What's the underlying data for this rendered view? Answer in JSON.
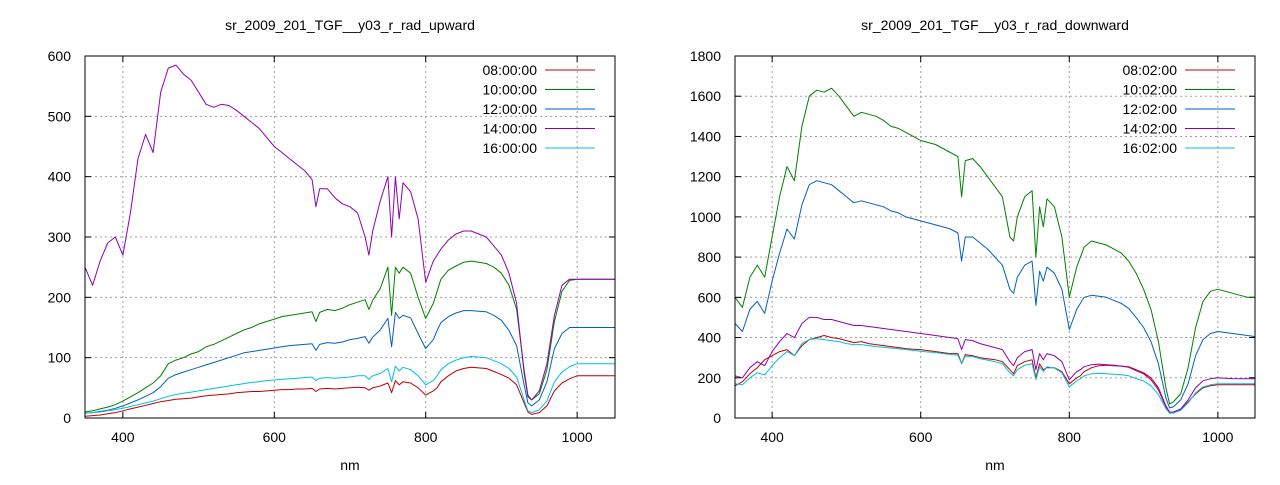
{
  "chart_data": [
    {
      "type": "line",
      "title": "sr_2009_201_TGF__y03_r_rad_upward",
      "xlabel": "nm",
      "ylabel": "",
      "xlim": [
        350,
        1050
      ],
      "ylim": [
        0,
        600
      ],
      "xticks": [
        400,
        600,
        800,
        1000
      ],
      "yticks": [
        0,
        100,
        200,
        300,
        400,
        500,
        600
      ],
      "grid": true,
      "legend": "top-right",
      "x": [
        350,
        360,
        370,
        380,
        390,
        400,
        410,
        420,
        430,
        440,
        450,
        460,
        470,
        480,
        490,
        500,
        510,
        520,
        530,
        540,
        550,
        560,
        570,
        580,
        590,
        600,
        610,
        620,
        630,
        640,
        650,
        655,
        660,
        670,
        680,
        690,
        700,
        710,
        720,
        725,
        730,
        740,
        750,
        755,
        760,
        765,
        770,
        780,
        790,
        800,
        810,
        815,
        820,
        830,
        840,
        850,
        860,
        870,
        880,
        890,
        900,
        910,
        920,
        930,
        935,
        940,
        950,
        960,
        970,
        980,
        990,
        1000,
        1010,
        1020,
        1030,
        1040,
        1050
      ],
      "series": [
        {
          "name": "08:00:00",
          "color": "#c00000",
          "values": [
            3,
            4,
            5,
            7,
            9,
            12,
            15,
            18,
            21,
            24,
            27,
            29,
            31,
            32,
            33,
            35,
            37,
            38,
            39,
            40,
            42,
            43,
            44,
            44,
            45,
            46,
            47,
            47,
            48,
            48,
            49,
            44,
            48,
            49,
            48,
            49,
            50,
            51,
            50,
            46,
            50,
            53,
            58,
            42,
            62,
            55,
            60,
            58,
            50,
            38,
            45,
            50,
            60,
            70,
            78,
            82,
            84,
            83,
            82,
            77,
            72,
            66,
            55,
            25,
            10,
            6,
            9,
            20,
            45,
            58,
            65,
            70,
            70,
            70,
            70,
            70,
            70
          ]
        },
        {
          "name": "10:00:00",
          "color": "#008000",
          "values": [
            10,
            12,
            15,
            18,
            22,
            28,
            35,
            42,
            50,
            58,
            70,
            90,
            96,
            100,
            106,
            110,
            118,
            122,
            128,
            134,
            140,
            146,
            150,
            156,
            160,
            164,
            168,
            170,
            172,
            174,
            176,
            160,
            175,
            180,
            178,
            182,
            188,
            192,
            196,
            180,
            195,
            215,
            250,
            170,
            250,
            240,
            250,
            240,
            200,
            165,
            190,
            210,
            230,
            245,
            252,
            258,
            260,
            258,
            256,
            250,
            240,
            220,
            180,
            80,
            38,
            30,
            40,
            80,
            160,
            210,
            228,
            230,
            230,
            230,
            230,
            230,
            230
          ]
        },
        {
          "name": "12:00:00",
          "color": "#0060c0",
          "values": [
            8,
            9,
            11,
            13,
            16,
            20,
            25,
            30,
            36,
            42,
            52,
            66,
            72,
            76,
            80,
            84,
            88,
            92,
            96,
            100,
            104,
            108,
            110,
            112,
            114,
            116,
            118,
            120,
            121,
            122,
            123,
            112,
            122,
            125,
            124,
            126,
            130,
            132,
            135,
            124,
            134,
            146,
            165,
            118,
            175,
            165,
            170,
            166,
            140,
            115,
            130,
            145,
            158,
            168,
            174,
            178,
            178,
            177,
            176,
            170,
            162,
            145,
            120,
            55,
            25,
            20,
            30,
            60,
            115,
            140,
            150,
            150,
            150,
            150,
            150,
            150,
            150
          ]
        },
        {
          "name": "14:00:00",
          "color": "#9000b0",
          "values": [
            250,
            220,
            260,
            290,
            300,
            270,
            340,
            430,
            470,
            440,
            540,
            580,
            585,
            570,
            560,
            540,
            520,
            515,
            520,
            518,
            510,
            500,
            490,
            480,
            465,
            450,
            440,
            430,
            420,
            410,
            395,
            350,
            380,
            380,
            365,
            355,
            350,
            340,
            300,
            270,
            310,
            360,
            400,
            300,
            400,
            330,
            390,
            375,
            330,
            225,
            260,
            270,
            280,
            295,
            305,
            310,
            310,
            305,
            300,
            285,
            270,
            240,
            190,
            75,
            35,
            30,
            45,
            90,
            170,
            220,
            230,
            230,
            230,
            230,
            230,
            230,
            230
          ]
        },
        {
          "name": "16:00:00",
          "color": "#00c0e0",
          "values": [
            8,
            9,
            10,
            12,
            14,
            16,
            19,
            22,
            25,
            28,
            32,
            36,
            39,
            41,
            43,
            45,
            47,
            49,
            51,
            53,
            55,
            57,
            59,
            60,
            62,
            63,
            64,
            65,
            66,
            67,
            68,
            62,
            66,
            67,
            66,
            67,
            68,
            70,
            70,
            64,
            70,
            74,
            82,
            60,
            86,
            78,
            84,
            80,
            70,
            55,
            62,
            70,
            80,
            90,
            96,
            100,
            102,
            101,
            100,
            95,
            90,
            82,
            68,
            30,
            12,
            9,
            14,
            28,
            60,
            76,
            85,
            90,
            90,
            90,
            90,
            90,
            90
          ]
        }
      ]
    },
    {
      "type": "line",
      "title": "sr_2009_201_TGF__y03_r_rad_downward",
      "xlabel": "nm",
      "ylabel": "",
      "xlim": [
        350,
        1050
      ],
      "ylim": [
        0,
        1800
      ],
      "xticks": [
        400,
        600,
        800,
        1000
      ],
      "yticks": [
        0,
        200,
        400,
        600,
        800,
        1000,
        1200,
        1400,
        1600,
        1800
      ],
      "grid": true,
      "legend": "top-right",
      "x": [
        350,
        360,
        370,
        380,
        390,
        400,
        410,
        420,
        430,
        440,
        450,
        460,
        470,
        480,
        490,
        500,
        510,
        520,
        530,
        540,
        550,
        560,
        570,
        580,
        590,
        600,
        610,
        620,
        630,
        640,
        650,
        655,
        660,
        670,
        680,
        690,
        700,
        710,
        720,
        725,
        730,
        740,
        750,
        755,
        760,
        765,
        770,
        780,
        790,
        800,
        810,
        815,
        820,
        830,
        840,
        850,
        860,
        870,
        880,
        890,
        900,
        910,
        920,
        930,
        935,
        940,
        950,
        960,
        970,
        980,
        990,
        1000,
        1010,
        1020,
        1030,
        1040,
        1050
      ],
      "series": [
        {
          "name": "08:02:00",
          "color": "#c00000",
          "values": [
            160,
            180,
            220,
            250,
            290,
            310,
            330,
            340,
            310,
            360,
            390,
            400,
            410,
            400,
            395,
            385,
            375,
            380,
            370,
            365,
            360,
            355,
            350,
            345,
            342,
            340,
            335,
            330,
            325,
            320,
            320,
            270,
            315,
            310,
            300,
            295,
            290,
            280,
            240,
            220,
            260,
            280,
            290,
            200,
            270,
            240,
            250,
            250,
            230,
            170,
            200,
            210,
            230,
            250,
            260,
            262,
            260,
            258,
            255,
            240,
            225,
            200,
            150,
            60,
            30,
            25,
            40,
            80,
            120,
            150,
            160,
            165,
            165,
            165,
            165,
            165,
            165
          ]
        },
        {
          "name": "10:02:00",
          "color": "#008000",
          "values": [
            600,
            550,
            700,
            760,
            700,
            900,
            1100,
            1250,
            1180,
            1450,
            1600,
            1630,
            1620,
            1640,
            1600,
            1550,
            1500,
            1520,
            1510,
            1500,
            1480,
            1450,
            1440,
            1420,
            1400,
            1380,
            1370,
            1360,
            1340,
            1320,
            1300,
            1100,
            1280,
            1290,
            1250,
            1200,
            1150,
            1100,
            900,
            880,
            1000,
            1100,
            1130,
            800,
            1050,
            950,
            1090,
            1050,
            900,
            600,
            750,
            800,
            850,
            880,
            870,
            860,
            840,
            820,
            780,
            720,
            640,
            540,
            380,
            150,
            70,
            80,
            120,
            250,
            450,
            580,
            630,
            640,
            630,
            620,
            610,
            600,
            600
          ]
        },
        {
          "name": "12:02:00",
          "color": "#0060c0",
          "values": [
            470,
            430,
            540,
            580,
            520,
            680,
            820,
            940,
            890,
            1060,
            1160,
            1180,
            1170,
            1160,
            1130,
            1100,
            1070,
            1080,
            1070,
            1060,
            1050,
            1030,
            1020,
            1000,
            990,
            980,
            970,
            960,
            950,
            940,
            920,
            780,
            900,
            900,
            870,
            840,
            800,
            760,
            640,
            620,
            700,
            760,
            780,
            560,
            730,
            680,
            750,
            720,
            640,
            440,
            540,
            570,
            600,
            610,
            605,
            600,
            585,
            570,
            545,
            500,
            450,
            380,
            270,
            100,
            50,
            55,
            90,
            170,
            310,
            390,
            420,
            430,
            425,
            420,
            415,
            410,
            405
          ]
        },
        {
          "name": "14:02:00",
          "color": "#9000b0",
          "values": [
            210,
            200,
            250,
            280,
            260,
            330,
            380,
            420,
            400,
            470,
            500,
            500,
            490,
            490,
            480,
            470,
            460,
            460,
            455,
            450,
            445,
            440,
            435,
            430,
            425,
            420,
            415,
            410,
            405,
            400,
            395,
            340,
            390,
            385,
            370,
            360,
            350,
            340,
            280,
            260,
            300,
            330,
            340,
            240,
            320,
            290,
            320,
            310,
            280,
            190,
            230,
            240,
            255,
            265,
            268,
            265,
            262,
            258,
            252,
            235,
            220,
            190,
            140,
            55,
            28,
            30,
            45,
            90,
            150,
            185,
            195,
            200,
            198,
            196,
            195,
            195,
            195
          ]
        },
        {
          "name": "16:02:00",
          "color": "#00c0e0",
          "values": [
            170,
            165,
            200,
            225,
            215,
            260,
            300,
            330,
            310,
            370,
            390,
            395,
            390,
            385,
            380,
            370,
            365,
            365,
            360,
            355,
            352,
            348,
            344,
            340,
            336,
            332,
            328,
            325,
            320,
            316,
            312,
            270,
            308,
            305,
            295,
            288,
            280,
            270,
            225,
            210,
            240,
            262,
            270,
            190,
            255,
            230,
            255,
            248,
            225,
            155,
            185,
            195,
            210,
            220,
            222,
            220,
            218,
            215,
            210,
            196,
            184,
            160,
            118,
            46,
            24,
            26,
            38,
            75,
            125,
            155,
            165,
            170,
            170,
            170,
            170,
            170,
            170
          ]
        }
      ]
    }
  ]
}
